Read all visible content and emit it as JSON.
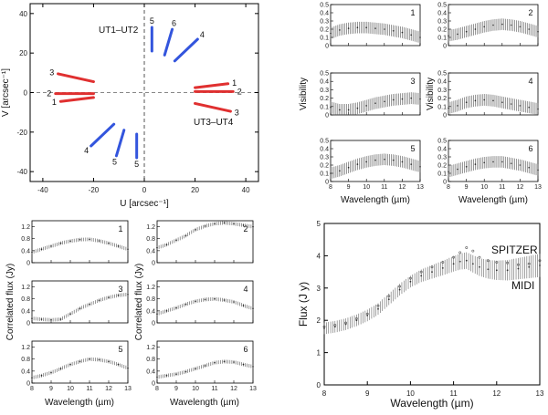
{
  "chart_data": [
    {
      "id": "uv",
      "type": "scatter",
      "xlabel": "U [arcsec⁻¹]",
      "ylabel": "V [arcsec⁻¹]",
      "xlim": [
        -45,
        45
      ],
      "ylim": [
        -45,
        45
      ],
      "xticks": [
        -40,
        -20,
        0,
        20,
        40
      ],
      "yticks": [
        -40,
        -20,
        0,
        20,
        40
      ],
      "baseline_labels": [
        "UT1–UT2",
        "UT3–UT4"
      ],
      "tracks": [
        {
          "series": "UT3-UT4",
          "color": "#e03030",
          "label": "1",
          "from": [
            -20,
            -2.5
          ],
          "to": [
            -33,
            -4.5
          ]
        },
        {
          "series": "UT3-UT4",
          "color": "#e03030",
          "label": "2",
          "from": [
            -20,
            -0.5
          ],
          "to": [
            -35,
            -0.5
          ]
        },
        {
          "series": "UT3-UT4",
          "color": "#e03030",
          "label": "3",
          "from": [
            -20,
            5.5
          ],
          "to": [
            -34,
            9.5
          ]
        },
        {
          "series": "UT3-UT4",
          "color": "#e03030",
          "label": "1",
          "from": [
            20,
            2.5
          ],
          "to": [
            33,
            4.5
          ]
        },
        {
          "series": "UT3-UT4",
          "color": "#e03030",
          "label": "2",
          "from": [
            20,
            0.5
          ],
          "to": [
            35,
            0.5
          ]
        },
        {
          "series": "UT3-UT4",
          "color": "#e03030",
          "label": "3",
          "from": [
            20,
            -5.5
          ],
          "to": [
            34,
            -9.5
          ]
        },
        {
          "series": "UT1-UT2",
          "color": "#3355dd",
          "label": "4",
          "from": [
            -12,
            -16
          ],
          "to": [
            -21,
            -27
          ]
        },
        {
          "series": "UT1-UT2",
          "color": "#3355dd",
          "label": "5",
          "from": [
            -8,
            -19
          ],
          "to": [
            -11,
            -32
          ]
        },
        {
          "series": "UT1-UT2",
          "color": "#3355dd",
          "label": "5",
          "from": [
            -3,
            -21
          ],
          "to": [
            -3,
            -33
          ]
        },
        {
          "series": "UT1-UT2",
          "color": "#3355dd",
          "label": "4",
          "from": [
            12,
            16
          ],
          "to": [
            21,
            27
          ]
        },
        {
          "series": "UT1-UT2",
          "color": "#3355dd",
          "label": "6",
          "from": [
            8,
            19
          ],
          "to": [
            11,
            32
          ]
        },
        {
          "series": "UT1-UT2",
          "color": "#3355dd",
          "label": "5",
          "from": [
            3,
            21
          ],
          "to": [
            3,
            33
          ]
        }
      ]
    },
    {
      "id": "visibility",
      "type": "line",
      "xlabel": "Wavelength (µm)",
      "ylabel": "Visibility",
      "xlim": [
        8,
        13
      ],
      "ylim": [
        0,
        0.5
      ],
      "xticks": [
        8,
        9,
        10,
        11,
        12,
        13
      ],
      "yticks": [
        0,
        0.1,
        0.2,
        0.3,
        0.4,
        0.5
      ],
      "x": [
        8,
        8.5,
        9,
        9.5,
        10,
        10.5,
        11,
        11.5,
        12,
        12.5,
        13
      ],
      "error": 0.07,
      "panels": [
        {
          "label": "1",
          "values": [
            0.15,
            0.19,
            0.21,
            0.22,
            0.22,
            0.21,
            0.2,
            0.18,
            0.16,
            0.13,
            0.1
          ]
        },
        {
          "label": "2",
          "values": [
            0.12,
            0.14,
            0.17,
            0.2,
            0.23,
            0.25,
            0.26,
            0.25,
            0.23,
            0.2,
            0.17
          ]
        },
        {
          "label": "3",
          "values": [
            0.09,
            0.06,
            0.06,
            0.08,
            0.11,
            0.14,
            0.16,
            0.18,
            0.19,
            0.2,
            0.19
          ]
        },
        {
          "label": "4",
          "values": [
            0.08,
            0.11,
            0.15,
            0.17,
            0.18,
            0.17,
            0.15,
            0.13,
            0.11,
            0.09,
            0.07
          ]
        },
        {
          "label": "5",
          "values": [
            0.1,
            0.13,
            0.17,
            0.21,
            0.24,
            0.26,
            0.27,
            0.26,
            0.24,
            0.21,
            0.18
          ]
        },
        {
          "label": "6",
          "values": [
            0.12,
            0.15,
            0.18,
            0.21,
            0.23,
            0.24,
            0.24,
            0.22,
            0.2,
            0.17,
            0.14
          ]
        }
      ]
    },
    {
      "id": "correlated_flux",
      "type": "line",
      "xlabel": "Wavelength (µm)",
      "ylabel": "Correlated flux (Jy)",
      "xlim": [
        8,
        13
      ],
      "ylim": [
        0,
        1.4
      ],
      "xticks": [
        8,
        9,
        10,
        11,
        12,
        13
      ],
      "yticks": [
        0,
        0.4,
        0.8,
        1.2
      ],
      "x": [
        8,
        8.5,
        9,
        9.5,
        10,
        10.5,
        11,
        11.5,
        12,
        12.5,
        13
      ],
      "error": 0.06,
      "panels": [
        {
          "label": "1",
          "values": [
            0.35,
            0.45,
            0.55,
            0.65,
            0.72,
            0.77,
            0.78,
            0.73,
            0.65,
            0.55,
            0.45
          ]
        },
        {
          "label": "2",
          "values": [
            0.5,
            0.6,
            0.75,
            0.9,
            1.1,
            1.22,
            1.3,
            1.33,
            1.3,
            1.25,
            1.2
          ]
        },
        {
          "label": "3",
          "values": [
            0.15,
            0.12,
            0.1,
            0.12,
            0.3,
            0.48,
            0.62,
            0.75,
            0.85,
            0.92,
            0.95
          ]
        },
        {
          "label": "4",
          "values": [
            0.3,
            0.4,
            0.5,
            0.62,
            0.72,
            0.78,
            0.8,
            0.76,
            0.7,
            0.58,
            0.48
          ]
        },
        {
          "label": "5",
          "values": [
            0.18,
            0.25,
            0.35,
            0.48,
            0.62,
            0.72,
            0.8,
            0.78,
            0.72,
            0.62,
            0.5
          ]
        },
        {
          "label": "6",
          "values": [
            0.2,
            0.25,
            0.3,
            0.38,
            0.48,
            0.58,
            0.68,
            0.72,
            0.7,
            0.62,
            0.55
          ]
        }
      ]
    },
    {
      "id": "flux",
      "type": "line",
      "xlabel": "Wavelength (µm)",
      "ylabel": "Flux (J y)",
      "xlim": [
        8,
        13
      ],
      "ylim": [
        0,
        5
      ],
      "xticks": [
        8,
        9,
        10,
        11,
        12,
        13
      ],
      "yticks": [
        0,
        1,
        2,
        3,
        4,
        5
      ],
      "series": [
        {
          "name": "SPITZER",
          "style": "dotted",
          "x": [
            8,
            8.25,
            8.5,
            8.75,
            9,
            9.25,
            9.5,
            9.75,
            10,
            10.25,
            10.5,
            10.75,
            11,
            11.15,
            11.3,
            11.45,
            11.6,
            11.8,
            12,
            12.25,
            12.5,
            12.75,
            13
          ],
          "values": [
            1.8,
            1.85,
            1.92,
            2.05,
            2.2,
            2.45,
            2.75,
            3.05,
            3.3,
            3.5,
            3.65,
            3.8,
            3.95,
            4.1,
            4.25,
            4.15,
            3.95,
            3.85,
            3.8,
            3.78,
            3.72,
            3.75,
            3.85
          ]
        },
        {
          "name": "MIDI",
          "style": "errorbar",
          "x": [
            8,
            8.25,
            8.5,
            8.75,
            9,
            9.25,
            9.5,
            9.75,
            10,
            10.25,
            10.5,
            10.75,
            11,
            11.15,
            11.3,
            11.45,
            11.6,
            11.8,
            12,
            12.25,
            12.5,
            12.75,
            13
          ],
          "values": [
            1.75,
            1.8,
            1.88,
            2.0,
            2.15,
            2.35,
            2.65,
            2.95,
            3.2,
            3.38,
            3.5,
            3.62,
            3.75,
            3.82,
            3.85,
            3.75,
            3.65,
            3.58,
            3.55,
            3.55,
            3.6,
            3.65,
            3.7
          ],
          "error": 0.3
        }
      ]
    }
  ]
}
